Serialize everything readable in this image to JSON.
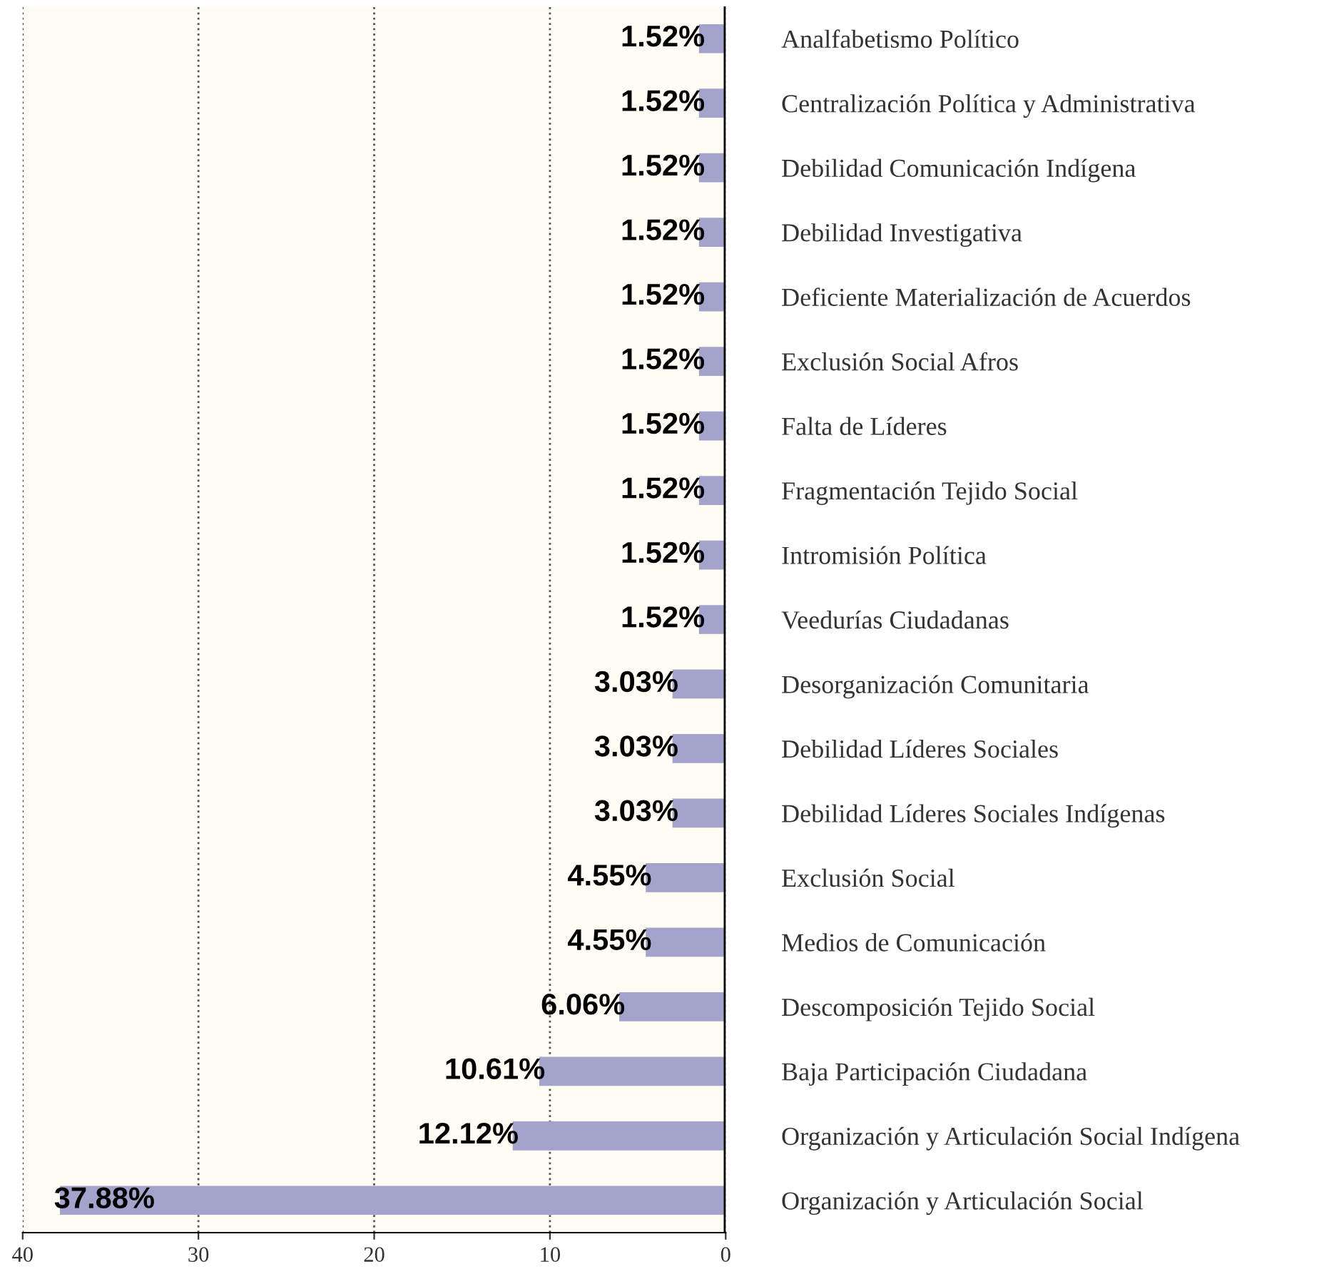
{
  "chart_data": {
    "type": "bar",
    "orientation": "horizontal",
    "categories": [
      "Analfabetismo Político",
      "Centralización Política y Administrativa",
      "Debilidad Comunicación Indígena",
      "Debilidad Investigativa",
      "Deficiente Materialización de Acuerdos",
      "Exclusión Social Afros",
      "Falta de Líderes",
      "Fragmentación Tejido Social",
      "Intromisión Política",
      "Veedurías Ciudadanas",
      "Desorganización Comunitaria",
      "Debilidad Líderes Sociales",
      "Debilidad Líderes Sociales Indígenas",
      "Exclusión Social",
      "Medios de Comunicación",
      "Descomposición Tejido Social",
      "Baja Participación Ciudadana",
      "Organización y Articulación Social Indígena",
      "Organización y Articulación Social"
    ],
    "values": [
      1.52,
      1.52,
      1.52,
      1.52,
      1.52,
      1.52,
      1.52,
      1.52,
      1.52,
      1.52,
      3.03,
      3.03,
      3.03,
      4.55,
      4.55,
      6.06,
      10.61,
      12.12,
      37.88
    ],
    "value_labels": [
      "1.52%",
      "1.52%",
      "1.52%",
      "1.52%",
      "1.52%",
      "1.52%",
      "1.52%",
      "1.52%",
      "1.52%",
      "1.52%",
      "3.03%",
      "3.03%",
      "3.03%",
      "4.55%",
      "4.55%",
      "6.06%",
      "10.61%",
      "12.12%",
      "37.88%"
    ],
    "color": "#a3a3cc",
    "xlim": [
      40,
      0
    ],
    "xticks": [
      40,
      30,
      20,
      10,
      0
    ],
    "grid": "x",
    "legend": false
  }
}
